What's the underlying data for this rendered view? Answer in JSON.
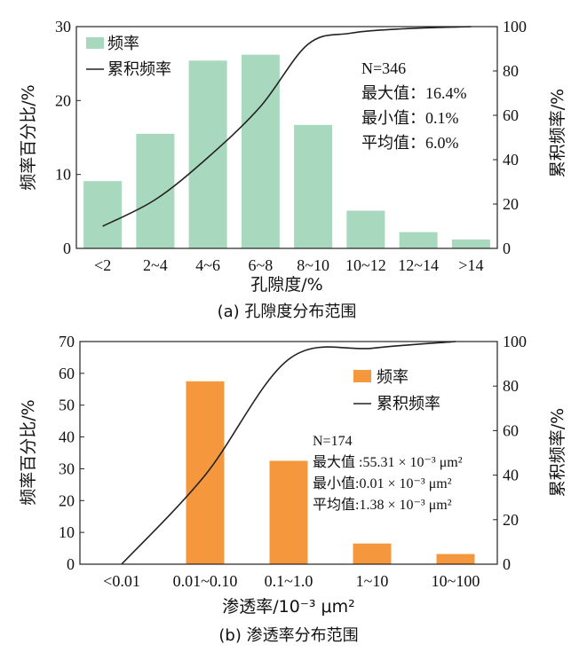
{
  "chart_data": [
    {
      "type": "bar",
      "categories": [
        "<2",
        "2~4",
        "4~6",
        "6~8",
        "8~10",
        "10~12",
        "12~14",
        ">14"
      ],
      "series": [
        {
          "name": "频率",
          "values": [
            9.1,
            15.5,
            25.4,
            26.2,
            16.7,
            5.1,
            2.2,
            1.2
          ]
        },
        {
          "name": "累积频率",
          "type": "line",
          "values": [
            10,
            22,
            41,
            64,
            92,
            97,
            99,
            100
          ]
        }
      ],
      "line_x_end_label_position": 100,
      "xlabel": "孔隙度/%",
      "ylabel": "频率百分比/%",
      "ylabel_right": "累积频率/%",
      "ylim": [
        0,
        30
      ],
      "ylim_right": [
        0,
        100
      ],
      "yticks": [
        "0",
        "10",
        "20",
        "30"
      ],
      "yticks_right": [
        "0",
        "20",
        "40",
        "60",
        "80",
        "100"
      ],
      "stats": [
        "N=346",
        "最大值：16.4%",
        "最小值：0.1%",
        "平均值：6.0%"
      ],
      "caption": "(a) 孔隙度分布范围",
      "bar_color": "#a8d8bd",
      "line_color": "#222222",
      "legend_position": "top-left"
    },
    {
      "type": "bar",
      "categories": [
        "<0.01",
        "0.01~0.10",
        "0.1~1.0",
        "1~10",
        "10~100"
      ],
      "series": [
        {
          "name": "频率",
          "values": [
            0,
            57.5,
            32.5,
            6.5,
            3.2
          ]
        },
        {
          "name": "累积频率",
          "type": "line",
          "values": [
            0,
            40,
            92,
            97,
            100
          ]
        }
      ],
      "xlabel": "渗透率/10⁻³ μm²",
      "ylabel": "频率百分比/%",
      "ylabel_right": "累积频率/%",
      "ylim": [
        0,
        70
      ],
      "ylim_right": [
        0,
        100
      ],
      "yticks": [
        "0",
        "10",
        "20",
        "30",
        "40",
        "50",
        "60",
        "70"
      ],
      "yticks_right": [
        "0",
        "20",
        "40",
        "60",
        "80",
        "100"
      ],
      "stats": [
        "N=174",
        "最大值 :55.31 × 10⁻³ μm²",
        "最小值:0.01 × 10⁻³  μm²",
        "平均值:1.38 × 10⁻³  μm²"
      ],
      "caption": "(b) 渗透率分布范围",
      "bar_color": "#f5973c",
      "line_color": "#222222",
      "legend_position": "top-right"
    }
  ]
}
